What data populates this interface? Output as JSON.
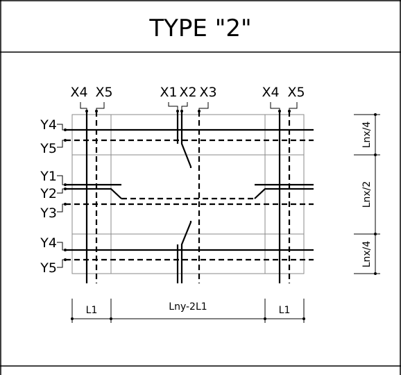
{
  "title": "TYPE \"2\"",
  "column_labels": {
    "x4_left": "X4",
    "x5_left": "X5",
    "x1": "X1",
    "x2": "X2",
    "x3": "X3",
    "x4_right": "X4",
    "x5_right": "X5"
  },
  "row_labels": {
    "y4_top": "Y4",
    "y5_top": "Y5",
    "y1": "Y1",
    "y2": "Y2",
    "y3": "Y3",
    "y4_bottom": "Y4",
    "y5_bottom": "Y5"
  },
  "dimensions": {
    "bottom_left": "L1",
    "bottom_middle": "Lny-2L1",
    "bottom_right": "L1",
    "right_top": "Lnx/4",
    "right_middle": "Lnx/2",
    "right_bottom": "Lnx/4"
  }
}
